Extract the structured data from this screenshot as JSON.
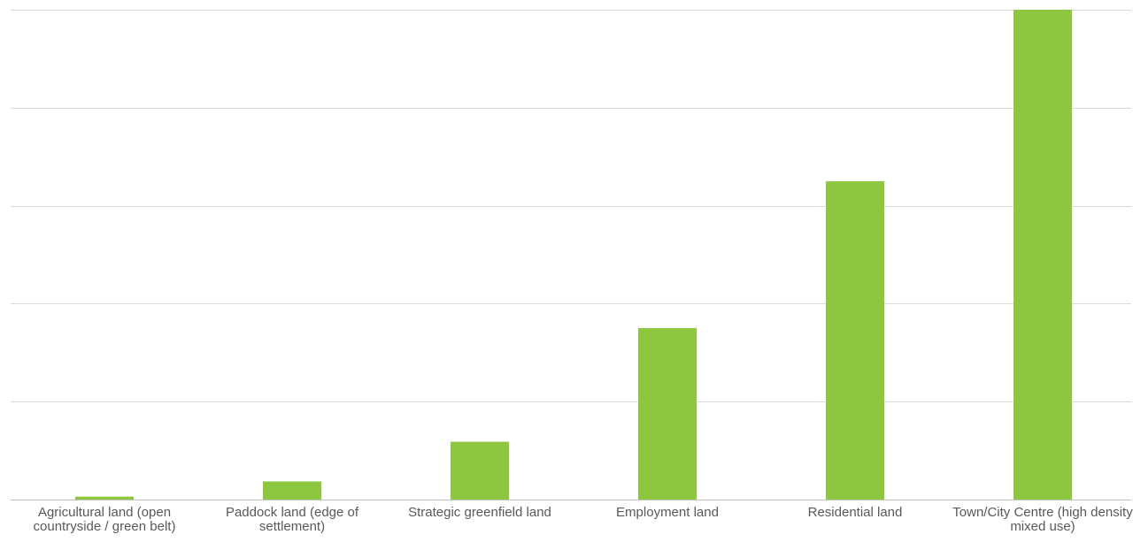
{
  "chart_data": {
    "type": "bar",
    "categories": [
      "Agricultural land (open countryside / green belt)",
      "Paddock land (edge of settlement)",
      "Strategic greenfield land",
      "Employment land",
      "Residential land",
      "Town/City Centre (high density mixed use)"
    ],
    "values": [
      0.6,
      3.7,
      11.8,
      35.0,
      65.0,
      100.0
    ],
    "ylim": [
      0,
      100
    ],
    "gridlines": [
      0,
      20,
      40,
      60,
      80,
      100
    ],
    "grid": true,
    "title": "",
    "xlabel": "",
    "ylabel": "",
    "bar_color": "#8dc63f",
    "gridline_color": "#d9d9d9",
    "axis_color": "#bfbfbf"
  }
}
